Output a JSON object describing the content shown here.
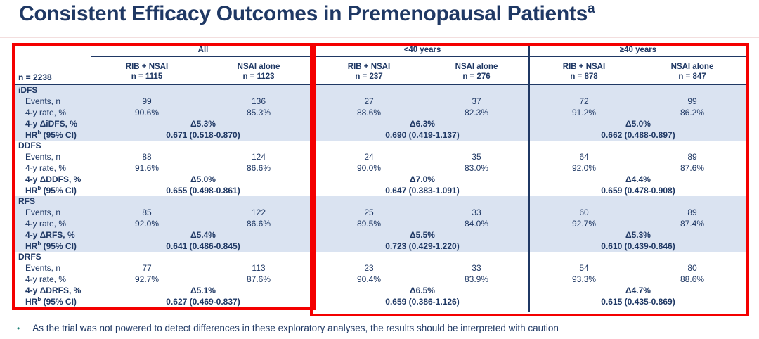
{
  "title": {
    "text": "Consistent Efficacy Outcomes in Premenopausal Patients",
    "superscript": "a"
  },
  "table": {
    "n_label": "n = 2238",
    "groups": [
      {
        "label": "All",
        "arms": [
          {
            "name": "RIB + NSAI",
            "n": "n = 1115"
          },
          {
            "name": "NSAI alone",
            "n": "n = 1123"
          }
        ]
      },
      {
        "label": "<40 years",
        "arms": [
          {
            "name": "RIB + NSAI",
            "n": "n = 237"
          },
          {
            "name": "NSAI alone",
            "n": "n = 276"
          }
        ]
      },
      {
        "label": "≥40 years",
        "arms": [
          {
            "name": "RIB + NSAI",
            "n": "n = 878"
          },
          {
            "name": "NSAI alone",
            "n": "n = 847"
          }
        ]
      }
    ],
    "row_labels": {
      "events": "Events, n",
      "rate": "4-y rate, %",
      "hr_pre": "HR",
      "hr_sup": "b",
      "hr_post": " (95% CI)"
    },
    "sections": [
      {
        "name": "iDFS",
        "shaded": true,
        "delta_label": "4-y ΔiDFS, %",
        "events": [
          "99",
          "136",
          "27",
          "37",
          "72",
          "99"
        ],
        "rates": [
          "90.6%",
          "85.3%",
          "88.6%",
          "82.3%",
          "91.2%",
          "86.2%"
        ],
        "deltas": [
          "Δ5.3%",
          "Δ6.3%",
          "Δ5.0%"
        ],
        "hrs": [
          "0.671 (0.518-0.870)",
          "0.690 (0.419-1.137)",
          "0.662 (0.488-0.897)"
        ]
      },
      {
        "name": "DDFS",
        "shaded": false,
        "delta_label": "4-y ΔDDFS, %",
        "events": [
          "88",
          "124",
          "24",
          "35",
          "64",
          "89"
        ],
        "rates": [
          "91.6%",
          "86.6%",
          "90.0%",
          "83.0%",
          "92.0%",
          "87.6%"
        ],
        "deltas": [
          "Δ5.0%",
          "Δ7.0%",
          "Δ4.4%"
        ],
        "hrs": [
          "0.655 (0.498-0.861)",
          "0.647 (0.383-1.091)",
          "0.659 (0.478-0.908)"
        ]
      },
      {
        "name": "RFS",
        "shaded": true,
        "delta_label": "4-y ΔRFS, %",
        "events": [
          "85",
          "122",
          "25",
          "33",
          "60",
          "89"
        ],
        "rates": [
          "92.0%",
          "86.6%",
          "89.5%",
          "84.0%",
          "92.7%",
          "87.4%"
        ],
        "deltas": [
          "Δ5.4%",
          "Δ5.5%",
          "Δ5.3%"
        ],
        "hrs": [
          "0.641 (0.486-0.845)",
          "0.723 (0.429-1.220)",
          "0.610 (0.439-0.846)"
        ]
      },
      {
        "name": "DRFS",
        "shaded": false,
        "delta_label": "4-y ΔDRFS, %",
        "events": [
          "77",
          "113",
          "23",
          "33",
          "54",
          "80"
        ],
        "rates": [
          "92.7%",
          "87.6%",
          "90.4%",
          "83.9%",
          "93.3%",
          "88.6%"
        ],
        "deltas": [
          "Δ5.1%",
          "Δ6.5%",
          "Δ4.7%"
        ],
        "hrs": [
          "0.627 (0.469-0.837)",
          "0.659 (0.386-1.126)",
          "0.615 (0.435-0.869)"
        ]
      }
    ]
  },
  "footnote": {
    "bullet": "•",
    "text": "As the trial was not powered to detect differences in these exploratory analyses, the results should be interpreted with caution"
  },
  "colors": {
    "navy": "#1F3864",
    "band": "#DAE3F1",
    "red_border": "#F40000",
    "bullet_teal": "#1C8074",
    "title_divider_pink": "#F3DEDE"
  }
}
